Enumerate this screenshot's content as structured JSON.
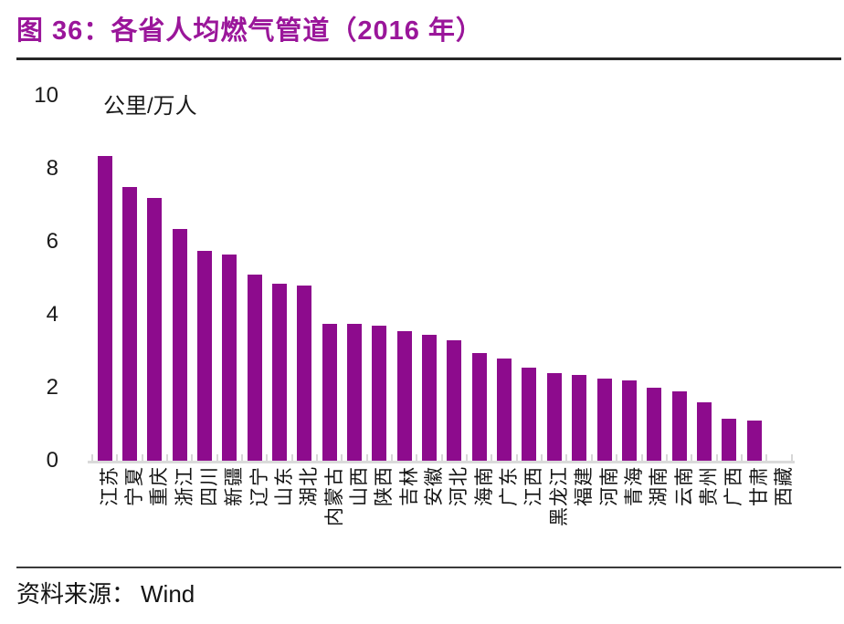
{
  "title": "图 36：各省人均燃气管道（2016 年）",
  "unit_label": "公里/万人",
  "source": {
    "label": "资料来源：",
    "value": "Wind"
  },
  "colors": {
    "title": "#9A169A",
    "bar": "#8D0B8D",
    "axis": "#D6D6D6",
    "rule": "#262626"
  },
  "chart_data": {
    "type": "bar",
    "title": "各省人均燃气管道（2016 年）",
    "ylabel": "公里/万人",
    "ylim": [
      0,
      10
    ],
    "yticks": [
      10,
      8,
      6,
      4,
      2,
      0
    ],
    "grid": false,
    "legend_position": "none",
    "categories": [
      "江苏",
      "宁夏",
      "重庆",
      "浙江",
      "四川",
      "新疆",
      "辽宁",
      "山东",
      "湖北",
      "内蒙古",
      "山西",
      "陕西",
      "吉林",
      "安徽",
      "河北",
      "海南",
      "广东",
      "江西",
      "黑龙江",
      "福建",
      "河南",
      "青海",
      "湖南",
      "云南",
      "贵州",
      "广西",
      "甘肃",
      "西藏"
    ],
    "values": [
      8.35,
      7.5,
      7.2,
      6.35,
      5.75,
      5.65,
      5.1,
      4.85,
      4.8,
      3.75,
      3.75,
      3.7,
      3.55,
      3.45,
      3.3,
      2.95,
      2.8,
      2.55,
      2.4,
      2.35,
      2.25,
      2.2,
      2.0,
      1.9,
      1.6,
      1.15,
      1.1,
      0
    ]
  }
}
